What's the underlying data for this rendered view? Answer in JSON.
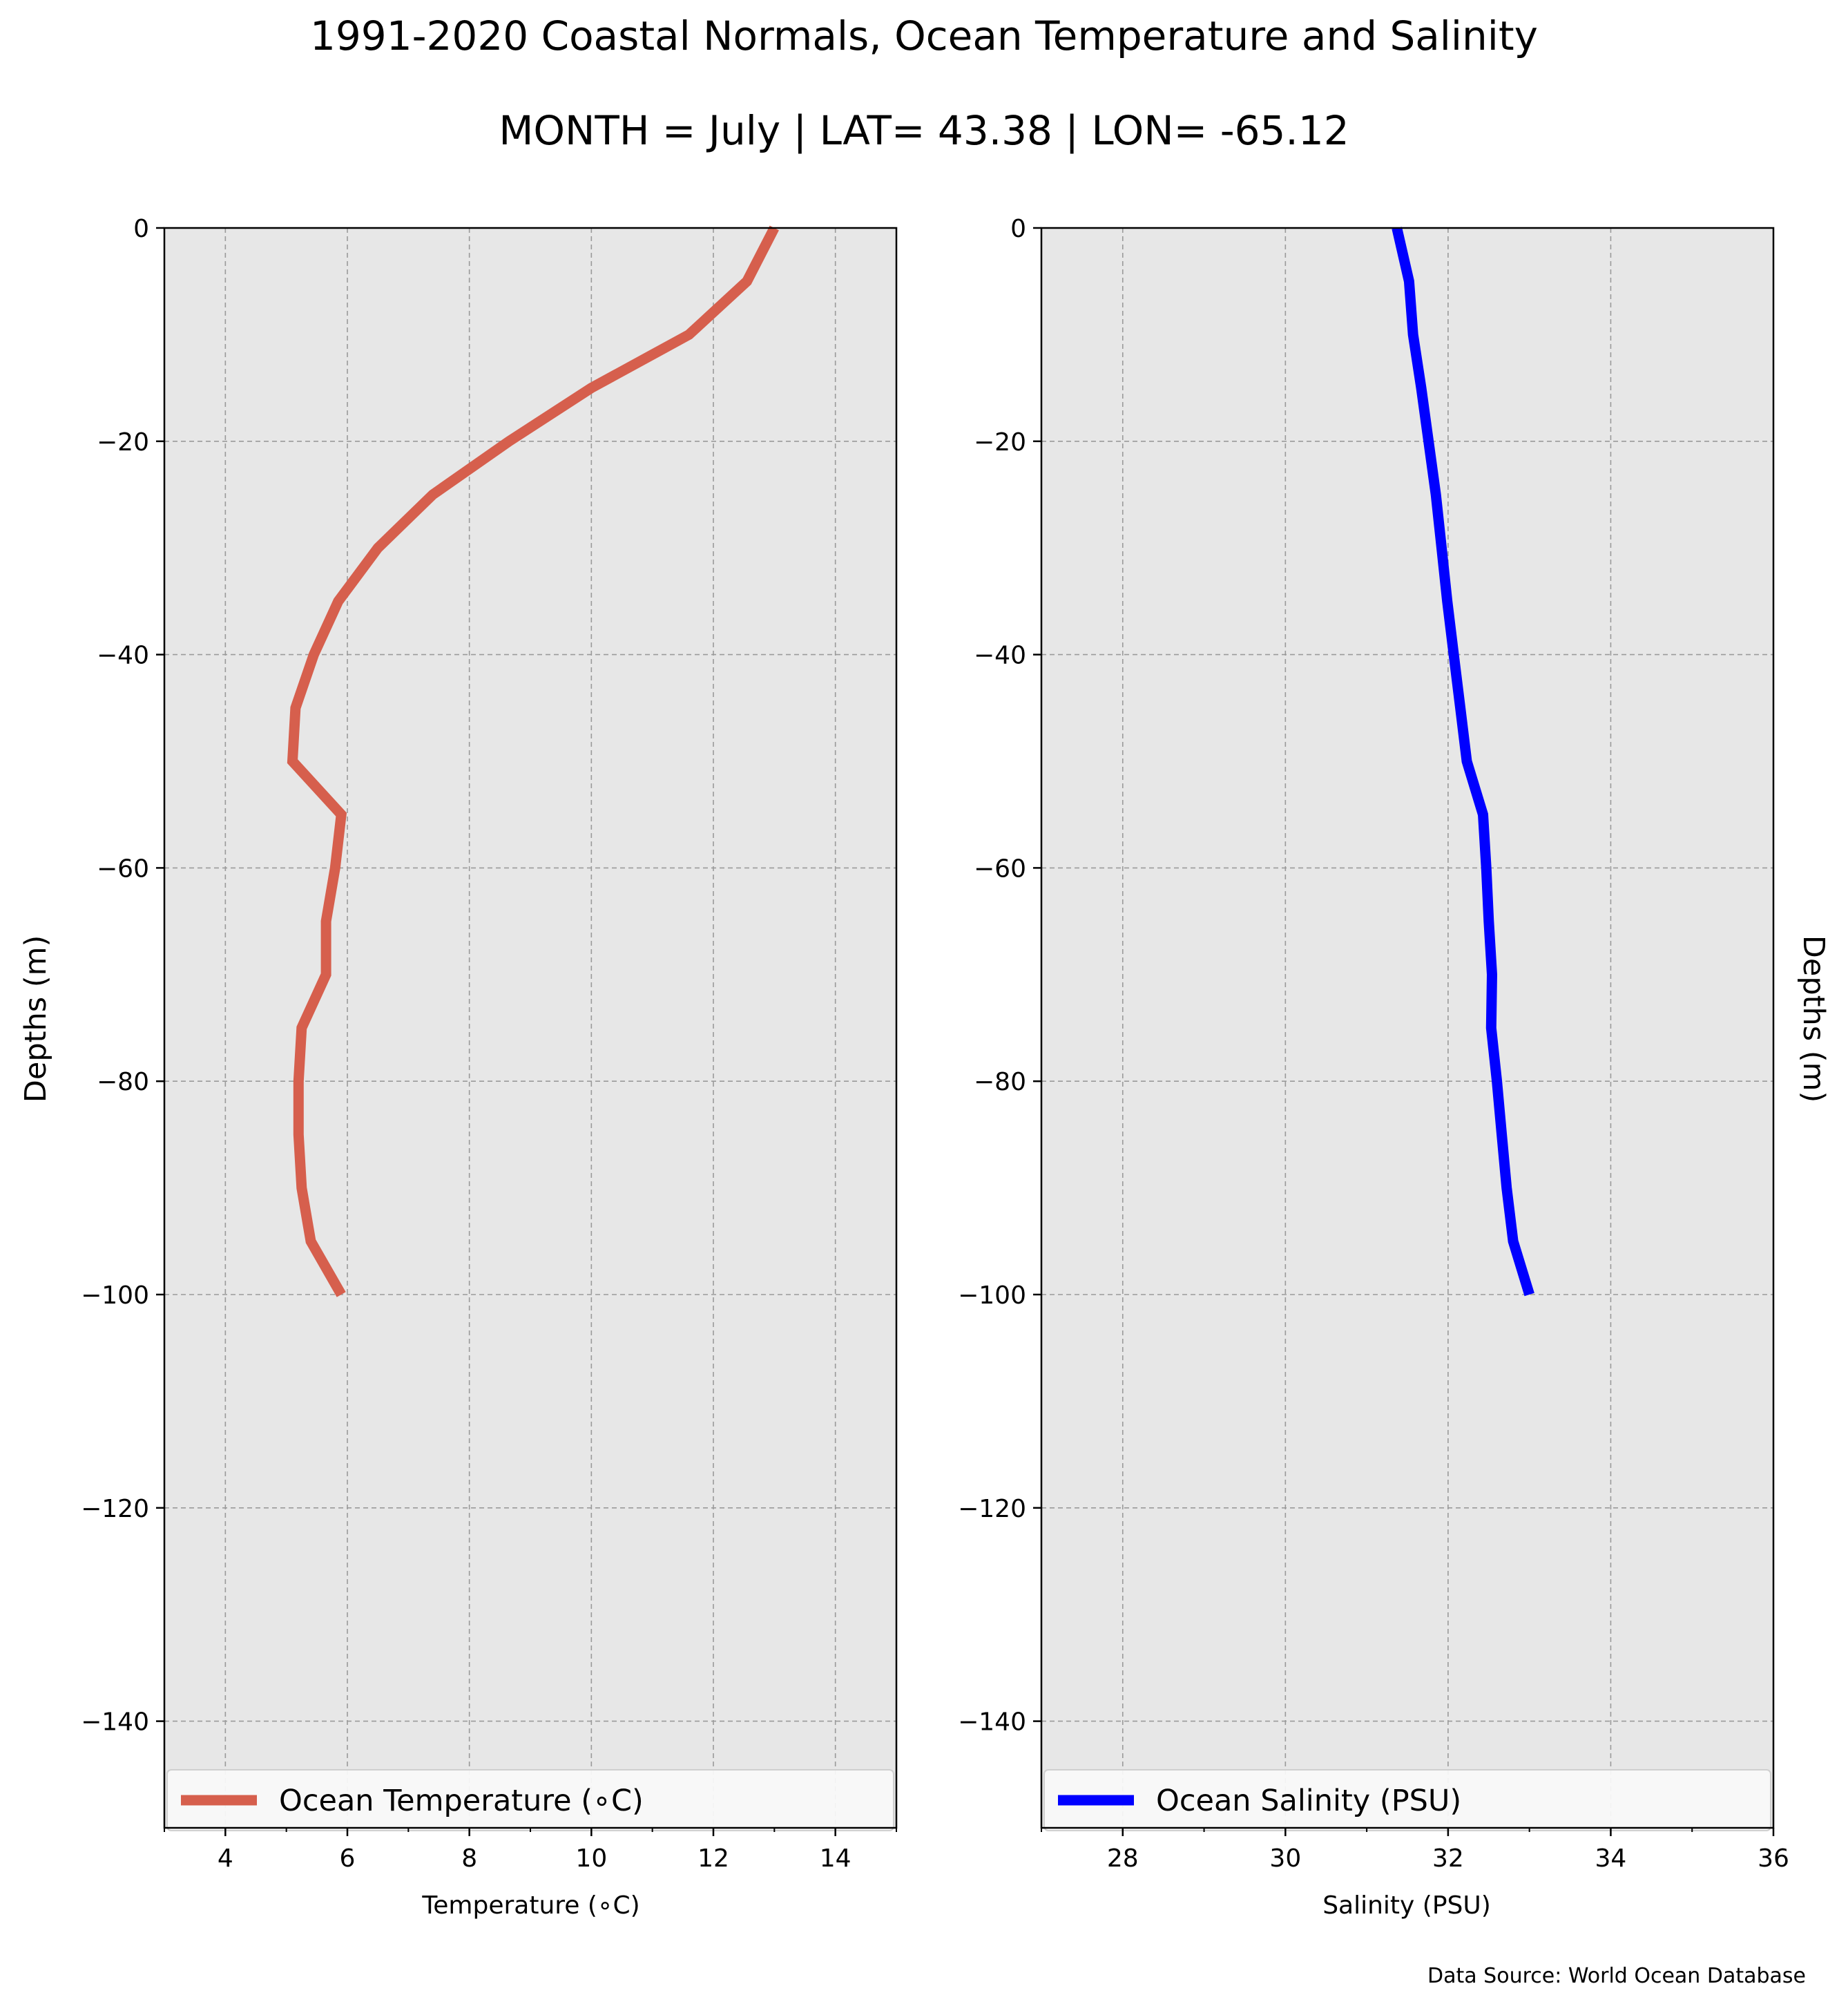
{
  "figure": {
    "title": "1991-2020 Coastal Normals, Ocean Temperature and Salinity",
    "subtitle": "MONTH = July | LAT= 43.38 | LON= -65.12",
    "source": "Data Source: World Ocean Database"
  },
  "chart_data": [
    {
      "type": "line",
      "xlabel": "Temperature (∘C)",
      "ylabel": "Depths (m)",
      "xlim": [
        3,
        15
      ],
      "ylim": [
        -150,
        0
      ],
      "xticks": [
        4,
        6,
        8,
        10,
        12,
        14
      ],
      "xticks_minor": [
        3,
        5,
        7,
        9,
        11,
        13,
        15
      ],
      "yticks": [
        0,
        -20,
        -40,
        -60,
        -80,
        -100,
        -120,
        -140
      ],
      "ytick_labels": [
        "0",
        "−20",
        "−40",
        "−60",
        "−80",
        "−100",
        "−120",
        "−140"
      ],
      "xtick_labels": [
        "4",
        "6",
        "8",
        "10",
        "12",
        "14"
      ],
      "grid": true,
      "legend_position": "bottom",
      "series": [
        {
          "name": "Ocean Temperature (∘C)",
          "color": "#d65f4d",
          "x": [
            13.0,
            12.55,
            11.6,
            10.0,
            8.65,
            7.4,
            6.5,
            5.85,
            5.45,
            5.15,
            5.1,
            5.9,
            5.8,
            5.65,
            5.65,
            5.25,
            5.2,
            5.2,
            5.25,
            5.4,
            5.9
          ],
          "y": [
            0,
            -5,
            -10,
            -15,
            -20,
            -25,
            -30,
            -35,
            -40,
            -45,
            -50,
            -55,
            -60,
            -65,
            -70,
            -75,
            -80,
            -85,
            -90,
            -95,
            -100
          ]
        }
      ]
    },
    {
      "type": "line",
      "xlabel": "Salinity (PSU)",
      "ylabel": "Depths (m)",
      "xlim": [
        27,
        36
      ],
      "ylim": [
        -150,
        0
      ],
      "xticks": [
        28,
        30,
        32,
        34,
        36
      ],
      "xticks_minor": [
        27,
        29,
        31,
        33,
        35
      ],
      "yticks": [
        0,
        -20,
        -40,
        -60,
        -80,
        -100,
        -120,
        -140
      ],
      "ytick_labels": [
        "0",
        "−20",
        "−40",
        "−60",
        "−80",
        "−100",
        "−120",
        "−140"
      ],
      "xtick_labels": [
        "28",
        "30",
        "32",
        "34",
        "36"
      ],
      "grid": true,
      "legend_position": "bottom",
      "series": [
        {
          "name": "Ocean Salinity (PSU)",
          "color": "#0000ff",
          "x": [
            31.37,
            31.52,
            31.57,
            31.67,
            31.76,
            31.85,
            31.92,
            31.99,
            32.07,
            32.15,
            32.23,
            32.43,
            32.47,
            32.5,
            32.54,
            32.53,
            32.6,
            32.66,
            32.72,
            32.8,
            33.0
          ],
          "y": [
            0,
            -5,
            -10,
            -15,
            -20,
            -25,
            -30,
            -35,
            -40,
            -45,
            -50,
            -55,
            -60,
            -65,
            -70,
            -75,
            -80,
            -85,
            -90,
            -95,
            -100
          ]
        }
      ]
    }
  ]
}
